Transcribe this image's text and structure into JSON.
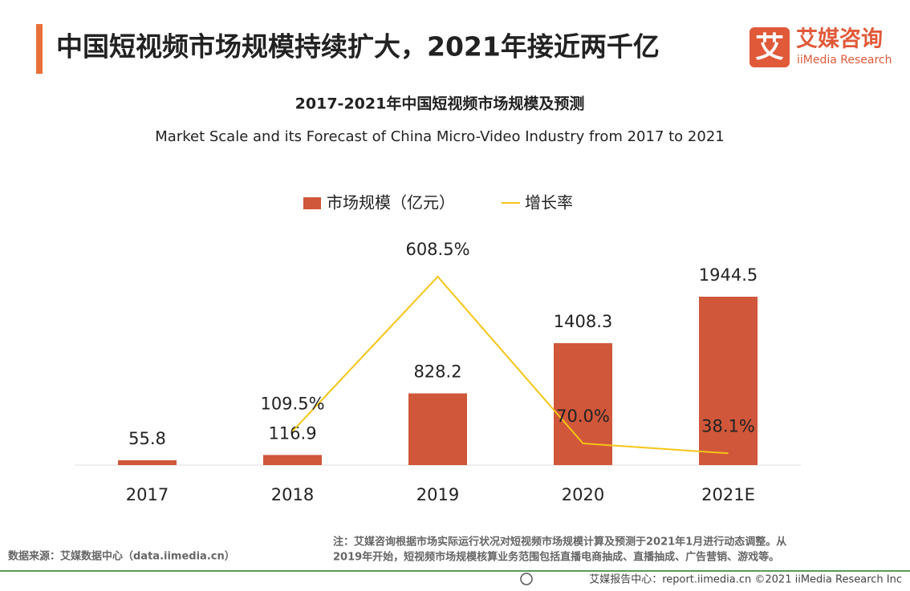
{
  "header": {
    "title": "中国短视频市场规模持续扩大，2021年接近两千亿",
    "logo_mark": "艾",
    "logo_name": "艾媒咨询",
    "logo_en": "iiMedia Research"
  },
  "chart_data": {
    "type": "bar",
    "title": "2017-2021年中国短视频市场规模及预测",
    "subtitle": "Market Scale and its Forecast of China Micro-Video Industry from 2017 to 2021",
    "categories": [
      "2017",
      "2018",
      "2019",
      "2020",
      "2021E"
    ],
    "series": [
      {
        "name": "市场规模（亿元）",
        "type": "bar",
        "color": "#d0573a",
        "values": [
          55.8,
          116.9,
          828.2,
          1408.3,
          1944.5
        ]
      },
      {
        "name": "增长率",
        "type": "line",
        "color": "#f5c518",
        "values": [
          null,
          109.5,
          608.5,
          70.0,
          38.1
        ],
        "value_labels": [
          null,
          "109.5%",
          "608.5%",
          "70.0%",
          "38.1%"
        ]
      }
    ]
  },
  "footer": {
    "source": "数据来源：艾媒数据中心（data.iimedia.cn）",
    "note": [
      "注：艾媒咨询根据市场实际运行状况对短视频市场规模计算及预测于2021年1月进行动态调整。从",
      "2019年开始，短视频市场规模核算业务范围包括直播电商抽成、直播抽成、广告营销、游戏等。"
    ],
    "copyright": "艾媒报告中心：report.iimedia.cn  ©2021  iiMedia Research  Inc"
  }
}
